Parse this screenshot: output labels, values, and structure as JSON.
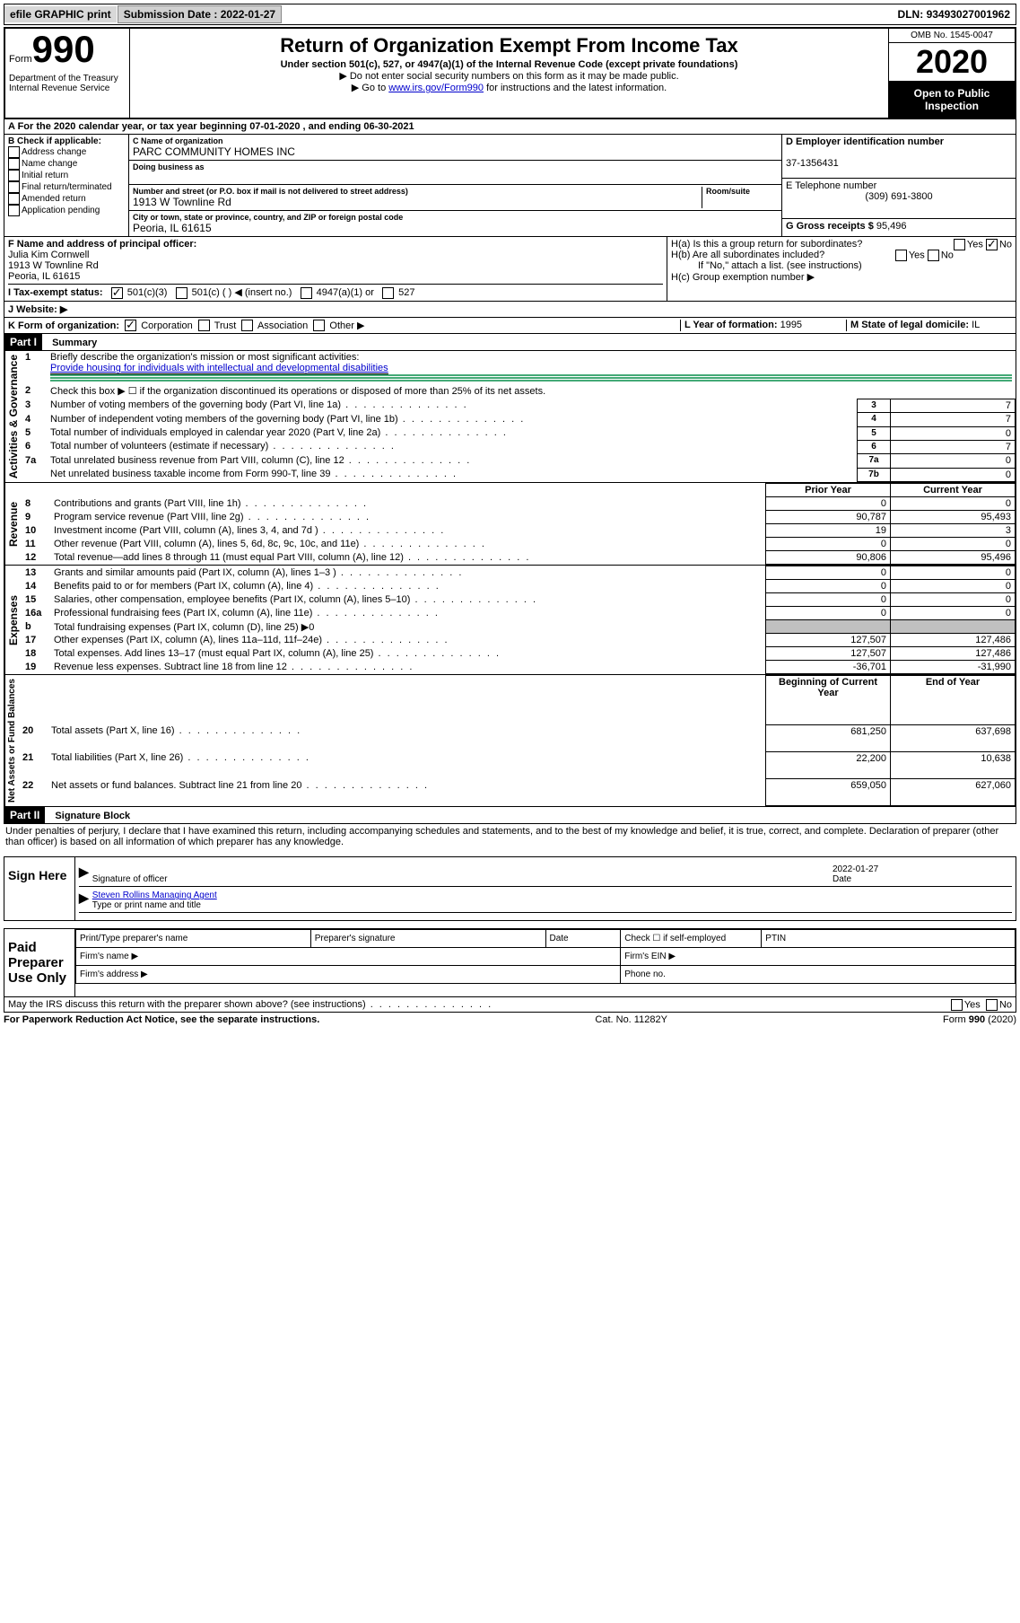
{
  "top": {
    "efile": "efile GRAPHIC print",
    "sub_label": "Submission Date :",
    "sub_date": "2022-01-27",
    "dln_label": "DLN:",
    "dln": "93493027001962"
  },
  "header": {
    "form_prefix": "Form",
    "form_number": "990",
    "dept": "Department of the Treasury Internal Revenue Service",
    "title": "Return of Organization Exempt From Income Tax",
    "sub1": "Under section 501(c), 527, or 4947(a)(1) of the Internal Revenue Code (except private foundations)",
    "sub2": "▶ Do not enter social security numbers on this form as it may be made public.",
    "sub3_a": "▶ Go to ",
    "sub3_link": "www.irs.gov/Form990",
    "sub3_b": " for instructions and the latest information.",
    "omb": "OMB No. 1545-0047",
    "year": "2020",
    "open": "Open to Public Inspection"
  },
  "rowA": "A For the 2020 calendar year, or tax year beginning 07-01-2020  , and ending 06-30-2021",
  "B": {
    "label": "B Check if applicable:",
    "items": [
      "Address change",
      "Name change",
      "Initial return",
      "Final return/terminated",
      "Amended return",
      "Application pending"
    ]
  },
  "C": {
    "name_lbl": "C Name of organization",
    "name": "PARC COMMUNITY HOMES INC",
    "dba_lbl": "Doing business as",
    "addr_lbl": "Number and street (or P.O. box if mail is not delivered to street address)",
    "room_lbl": "Room/suite",
    "addr": "1913 W Townline Rd",
    "city_lbl": "City or town, state or province, country, and ZIP or foreign postal code",
    "city": "Peoria, IL  61615"
  },
  "D": {
    "lbl": "D Employer identification number",
    "val": "37-1356431"
  },
  "E": {
    "lbl": "E Telephone number",
    "val": "(309) 691-3800"
  },
  "G": {
    "lbl": "G Gross receipts $",
    "val": "95,496"
  },
  "F": {
    "lbl": "F Name and address of principal officer:",
    "name": "Julia Kim Cornwell",
    "addr": "1913 W Townline Rd",
    "city": "Peoria, IL  61615"
  },
  "H": {
    "a": "H(a)  Is this a group return for subordinates?",
    "b": "H(b)  Are all subordinates included?",
    "b2": "If \"No,\" attach a list. (see instructions)",
    "c": "H(c)  Group exemption number ▶"
  },
  "I": {
    "lbl": "I  Tax-exempt status:",
    "opts": [
      "501(c)(3)",
      "501(c) (  ) ◀ (insert no.)",
      "4947(a)(1) or",
      "527"
    ]
  },
  "J": "J  Website: ▶",
  "K": {
    "lbl": "K Form of organization:",
    "opts": [
      "Corporation",
      "Trust",
      "Association",
      "Other ▶"
    ]
  },
  "L": {
    "lbl": "L Year of formation:",
    "val": "1995"
  },
  "M": {
    "lbl": "M State of legal domicile:",
    "val": "IL"
  },
  "part1": {
    "hdr": "Part I",
    "title": "Summary",
    "sections": [
      {
        "label": "Activities & Governance",
        "rows": [
          {
            "n": "1",
            "text": "Briefly describe the organization's mission or most significant activities:",
            "mission": "Provide housing for individuals with intellectual and developmental disabilities"
          },
          {
            "n": "2",
            "text": "Check this box ▶ ☐  if the organization discontinued its operations or disposed of more than 25% of its net assets."
          },
          {
            "n": "3",
            "text": "Number of voting members of the governing body (Part VI, line 1a)",
            "num": "3",
            "val": "7"
          },
          {
            "n": "4",
            "text": "Number of independent voting members of the governing body (Part VI, line 1b)",
            "num": "4",
            "val": "7"
          },
          {
            "n": "5",
            "text": "Total number of individuals employed in calendar year 2020 (Part V, line 2a)",
            "num": "5",
            "val": "0"
          },
          {
            "n": "6",
            "text": "Total number of volunteers (estimate if necessary)",
            "num": "6",
            "val": "7"
          },
          {
            "n": "7a",
            "text": "Total unrelated business revenue from Part VIII, column (C), line 12",
            "num": "7a",
            "val": "0"
          },
          {
            "n": "",
            "text": "Net unrelated business taxable income from Form 990-T, line 39",
            "num": "7b",
            "val": "0"
          }
        ]
      }
    ],
    "comp_header": {
      "prior": "Prior Year",
      "curr": "Current Year"
    },
    "revenue": {
      "label": "Revenue",
      "rows": [
        {
          "n": "8",
          "text": "Contributions and grants (Part VIII, line 1h)",
          "prior": "0",
          "curr": "0"
        },
        {
          "n": "9",
          "text": "Program service revenue (Part VIII, line 2g)",
          "prior": "90,787",
          "curr": "95,493"
        },
        {
          "n": "10",
          "text": "Investment income (Part VIII, column (A), lines 3, 4, and 7d )",
          "prior": "19",
          "curr": "3"
        },
        {
          "n": "11",
          "text": "Other revenue (Part VIII, column (A), lines 5, 6d, 8c, 9c, 10c, and 11e)",
          "prior": "0",
          "curr": "0"
        },
        {
          "n": "12",
          "text": "Total revenue—add lines 8 through 11 (must equal Part VIII, column (A), line 12)",
          "prior": "90,806",
          "curr": "95,496"
        }
      ]
    },
    "expenses": {
      "label": "Expenses",
      "rows": [
        {
          "n": "13",
          "text": "Grants and similar amounts paid (Part IX, column (A), lines 1–3 )",
          "prior": "0",
          "curr": "0"
        },
        {
          "n": "14",
          "text": "Benefits paid to or for members (Part IX, column (A), line 4)",
          "prior": "0",
          "curr": "0"
        },
        {
          "n": "15",
          "text": "Salaries, other compensation, employee benefits (Part IX, column (A), lines 5–10)",
          "prior": "0",
          "curr": "0"
        },
        {
          "n": "16a",
          "text": "Professional fundraising fees (Part IX, column (A), line 11e)",
          "prior": "0",
          "curr": "0"
        },
        {
          "n": "b",
          "text": "Total fundraising expenses (Part IX, column (D), line 25) ▶0",
          "gray": true
        },
        {
          "n": "17",
          "text": "Other expenses (Part IX, column (A), lines 11a–11d, 11f–24e)",
          "prior": "127,507",
          "curr": "127,486"
        },
        {
          "n": "18",
          "text": "Total expenses. Add lines 13–17 (must equal Part IX, column (A), line 25)",
          "prior": "127,507",
          "curr": "127,486"
        },
        {
          "n": "19",
          "text": "Revenue less expenses. Subtract line 18 from line 12",
          "prior": "-36,701",
          "curr": "-31,990"
        }
      ]
    },
    "net_header": {
      "prior": "Beginning of Current Year",
      "curr": "End of Year"
    },
    "net": {
      "label": "Net Assets or Fund Balances",
      "rows": [
        {
          "n": "20",
          "text": "Total assets (Part X, line 16)",
          "prior": "681,250",
          "curr": "637,698"
        },
        {
          "n": "21",
          "text": "Total liabilities (Part X, line 26)",
          "prior": "22,200",
          "curr": "10,638"
        },
        {
          "n": "22",
          "text": "Net assets or fund balances. Subtract line 21 from line 20",
          "prior": "659,050",
          "curr": "627,060"
        }
      ]
    }
  },
  "part2": {
    "hdr": "Part II",
    "title": "Signature Block",
    "decl": "Under penalties of perjury, I declare that I have examined this return, including accompanying schedules and statements, and to the best of my knowledge and belief, it is true, correct, and complete. Declaration of preparer (other than officer) is based on all information of which preparer has any knowledge."
  },
  "sign": {
    "left": "Sign Here",
    "sig_lbl": "Signature of officer",
    "date_lbl": "Date",
    "date": "2022-01-27",
    "name": "Steven Rollins  Managing Agent",
    "name_lbl": "Type or print name and title"
  },
  "prep": {
    "left": "Paid Preparer Use Only",
    "c1": "Print/Type preparer's name",
    "c2": "Preparer's signature",
    "c3": "Date",
    "c4": "Check ☐ if self-employed",
    "c5": "PTIN",
    "firm": "Firm's name  ▶",
    "ein": "Firm's EIN ▶",
    "addr": "Firm's address ▶",
    "phone": "Phone no."
  },
  "discuss": "May the IRS discuss this return with the preparer shown above? (see instructions)",
  "footer": {
    "left": "For Paperwork Reduction Act Notice, see the separate instructions.",
    "mid": "Cat. No. 11282Y",
    "right": "Form 990 (2020)"
  },
  "yesno": {
    "yes": "Yes",
    "no": "No"
  }
}
